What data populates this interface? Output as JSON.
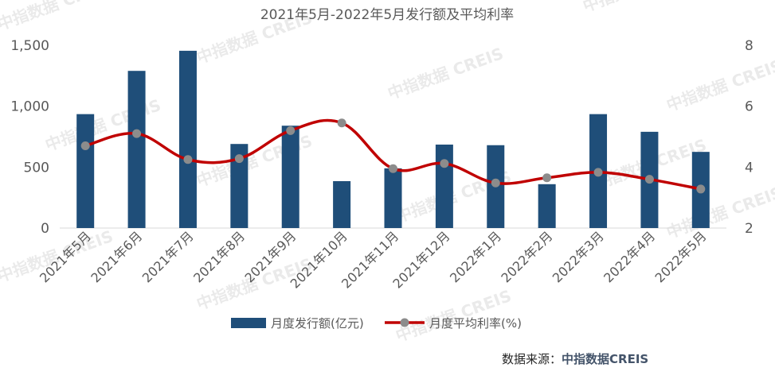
{
  "title": "2021年5月-2022年5月发行额及平均利率",
  "source_label": "数据来源：",
  "source_name": "中指数据CREIS",
  "watermark_text": "中指数据 CREIS",
  "colors": {
    "bar": "#1f4e79",
    "line": "#c00000",
    "marker": "#8c8c8c",
    "text": "#595959",
    "brand": "#44546a"
  },
  "chart_data": {
    "type": "bar",
    "categories": [
      "2021年5月",
      "2021年6月",
      "2021年7月",
      "2021年8月",
      "2021年9月",
      "2021年10月",
      "2021年11月",
      "2021年12月",
      "2022年1月",
      "2022年2月",
      "2022年3月",
      "2022年4月",
      "2022年5月"
    ],
    "series": [
      {
        "name": "月度发行额(亿元)",
        "type": "bar",
        "axis": "left",
        "values": [
          935,
          1290,
          1455,
          690,
          840,
          385,
          490,
          685,
          680,
          360,
          935,
          790,
          625
        ]
      },
      {
        "name": "月度平均利率(%)",
        "type": "line",
        "axis": "right",
        "values": [
          4.7,
          5.1,
          4.25,
          4.28,
          5.2,
          5.45,
          3.95,
          4.12,
          3.48,
          3.65,
          3.83,
          3.6,
          3.28
        ]
      }
    ],
    "y_left": {
      "ylim": [
        0,
        1500
      ],
      "ticks": [
        "0",
        "500",
        "1,000",
        "1,500"
      ],
      "tick_values": [
        0,
        500,
        1000,
        1500
      ]
    },
    "y_right": {
      "ylim": [
        2,
        8
      ],
      "ticks": [
        "2",
        "4",
        "6",
        "8"
      ],
      "tick_values": [
        2,
        4,
        6,
        8
      ]
    },
    "grid": false,
    "legend_position": "bottom"
  }
}
